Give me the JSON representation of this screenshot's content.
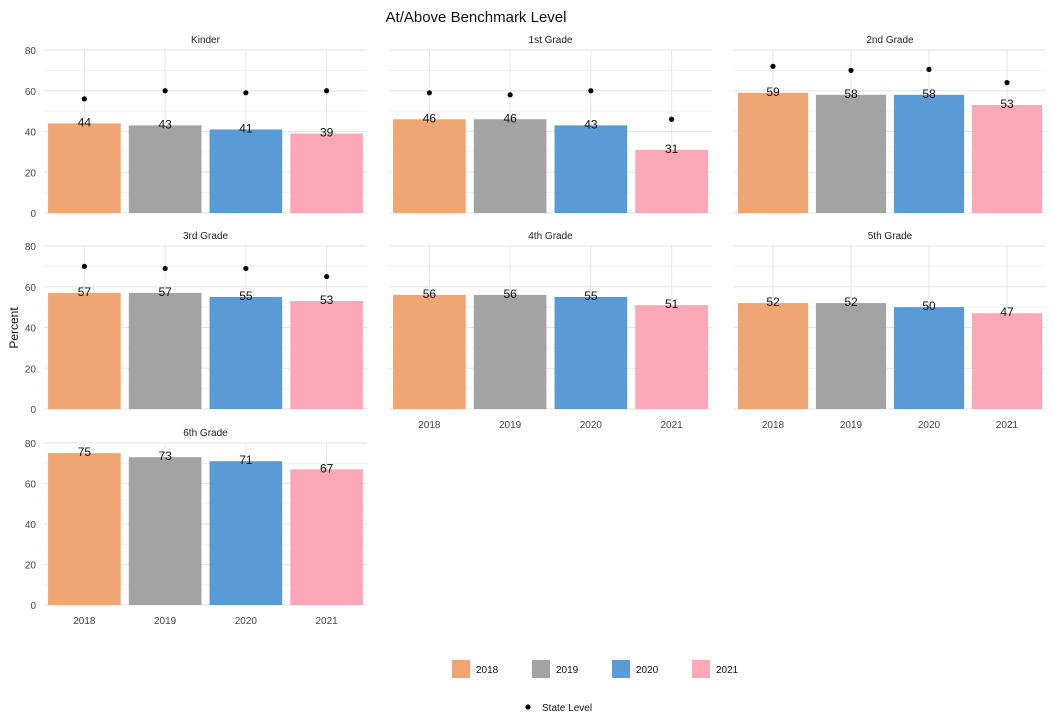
{
  "chart_data": {
    "type": "bar",
    "title": "At/Above Benchmark Level",
    "xlabel": "",
    "ylabel": "Percent",
    "ylim": [
      0,
      80
    ],
    "yticks": [
      0,
      20,
      40,
      60,
      80
    ],
    "categories": [
      "2018",
      "2019",
      "2020",
      "2021"
    ],
    "colors": {
      "2018": "#f0a672",
      "2019": "#a3a3a3",
      "2020": "#5b9bd5",
      "2021": "#fca8b7"
    },
    "grid": true,
    "legend_position": "bottom",
    "legend": {
      "fill_entries": [
        "2018",
        "2019",
        "2020",
        "2021"
      ],
      "point_entry": "State Level"
    },
    "panels": [
      {
        "name": "Kinder",
        "values": [
          44,
          43,
          41,
          39
        ],
        "state_level": [
          56,
          60,
          59,
          60
        ]
      },
      {
        "name": "1st Grade",
        "values": [
          46,
          46,
          43,
          31
        ],
        "state_level": [
          59,
          58,
          60,
          46
        ]
      },
      {
        "name": "2nd Grade",
        "values": [
          59,
          58,
          58,
          53
        ],
        "state_level": [
          72,
          70,
          70.5,
          64
        ]
      },
      {
        "name": "3rd Grade",
        "values": [
          57,
          57,
          55,
          53
        ],
        "state_level": [
          70,
          69,
          69,
          65
        ]
      },
      {
        "name": "4th Grade",
        "values": [
          56,
          56,
          55,
          51
        ],
        "state_level": null
      },
      {
        "name": "5th Grade",
        "values": [
          52,
          52,
          50,
          47
        ],
        "state_level": null
      },
      {
        "name": "6th Grade",
        "values": [
          75,
          73,
          71,
          67
        ],
        "state_level": null
      }
    ]
  }
}
